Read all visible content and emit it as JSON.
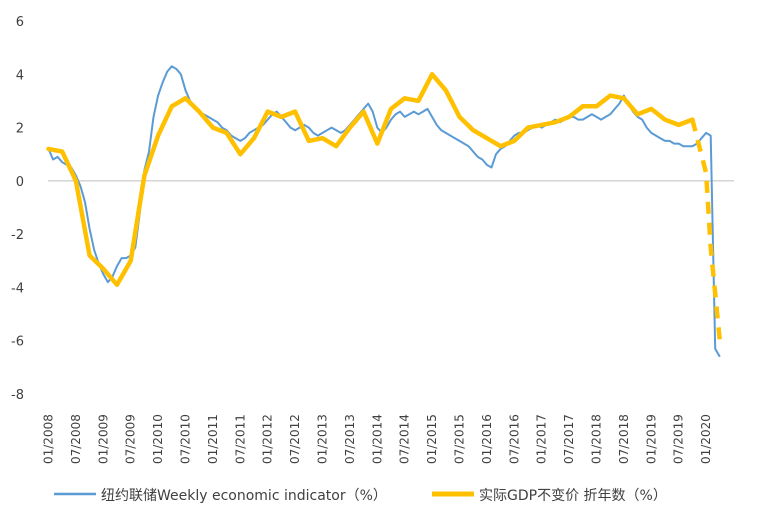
{
  "chart_data": {
    "type": "line",
    "x_ticks": [
      "01/2008",
      "07/2008",
      "01/2009",
      "07/2009",
      "01/2010",
      "07/2010",
      "01/2011",
      "07/2011",
      "01/2012",
      "07/2012",
      "01/2013",
      "07/2013",
      "01/2014",
      "07/2014",
      "01/2015",
      "07/2015",
      "01/2016",
      "07/2016",
      "01/2017",
      "07/2017",
      "01/2018",
      "07/2018",
      "01/2019",
      "07/2019",
      "01/2020"
    ],
    "y_ticks": [
      "6",
      "4",
      "2",
      "0",
      "-2",
      "-4",
      "-6",
      "-8"
    ],
    "ylim": [
      -8,
      6
    ],
    "grid": false,
    "legend_position": "bottom",
    "series": [
      {
        "name": "纽约联储Weekly economic indicator（%）",
        "color": "#5B9BD5",
        "style": "solid-thin",
        "points": [
          [
            "2008-01",
            1.2
          ],
          [
            "2008-02",
            0.8
          ],
          [
            "2008-03",
            0.9
          ],
          [
            "2008-04",
            0.7
          ],
          [
            "2008-05",
            0.6
          ],
          [
            "2008-06",
            0.5
          ],
          [
            "2008-07",
            0.2
          ],
          [
            "2008-08",
            -0.2
          ],
          [
            "2008-09",
            -0.8
          ],
          [
            "2008-10",
            -1.8
          ],
          [
            "2008-11",
            -2.6
          ],
          [
            "2008-12",
            -3.1
          ],
          [
            "2009-01",
            -3.5
          ],
          [
            "2009-02",
            -3.8
          ],
          [
            "2009-03",
            -3.6
          ],
          [
            "2009-04",
            -3.2
          ],
          [
            "2009-05",
            -2.9
          ],
          [
            "2009-06",
            -2.9
          ],
          [
            "2009-07",
            -2.8
          ],
          [
            "2009-08",
            -2.5
          ],
          [
            "2009-09",
            -1.2
          ],
          [
            "2009-10",
            0.4
          ],
          [
            "2009-11",
            1.1
          ],
          [
            "2009-12",
            2.4
          ],
          [
            "2010-01",
            3.2
          ],
          [
            "2010-02",
            3.7
          ],
          [
            "2010-03",
            4.1
          ],
          [
            "2010-04",
            4.3
          ],
          [
            "2010-05",
            4.2
          ],
          [
            "2010-06",
            4.0
          ],
          [
            "2010-07",
            3.4
          ],
          [
            "2010-08",
            3.0
          ],
          [
            "2010-09",
            2.8
          ],
          [
            "2010-10",
            2.6
          ],
          [
            "2010-11",
            2.5
          ],
          [
            "2010-12",
            2.4
          ],
          [
            "2011-01",
            2.3
          ],
          [
            "2011-02",
            2.2
          ],
          [
            "2011-03",
            2.0
          ],
          [
            "2011-04",
            1.9
          ],
          [
            "2011-05",
            1.7
          ],
          [
            "2011-06",
            1.6
          ],
          [
            "2011-07",
            1.5
          ],
          [
            "2011-08",
            1.6
          ],
          [
            "2011-09",
            1.8
          ],
          [
            "2011-10",
            1.9
          ],
          [
            "2011-11",
            2.0
          ],
          [
            "2011-12",
            2.1
          ],
          [
            "2012-01",
            2.3
          ],
          [
            "2012-02",
            2.5
          ],
          [
            "2012-03",
            2.6
          ],
          [
            "2012-04",
            2.4
          ],
          [
            "2012-05",
            2.2
          ],
          [
            "2012-06",
            2.0
          ],
          [
            "2012-07",
            1.9
          ],
          [
            "2012-08",
            2.0
          ],
          [
            "2012-09",
            2.1
          ],
          [
            "2012-10",
            2.0
          ],
          [
            "2012-11",
            1.8
          ],
          [
            "2012-12",
            1.7
          ],
          [
            "2013-01",
            1.8
          ],
          [
            "2013-02",
            1.9
          ],
          [
            "2013-03",
            2.0
          ],
          [
            "2013-04",
            1.9
          ],
          [
            "2013-05",
            1.8
          ],
          [
            "2013-06",
            1.9
          ],
          [
            "2013-07",
            2.1
          ],
          [
            "2013-08",
            2.3
          ],
          [
            "2013-09",
            2.5
          ],
          [
            "2013-10",
            2.7
          ],
          [
            "2013-11",
            2.9
          ],
          [
            "2013-12",
            2.6
          ],
          [
            "2014-01",
            2.0
          ],
          [
            "2014-02",
            1.8
          ],
          [
            "2014-03",
            2.0
          ],
          [
            "2014-04",
            2.3
          ],
          [
            "2014-05",
            2.5
          ],
          [
            "2014-06",
            2.6
          ],
          [
            "2014-07",
            2.4
          ],
          [
            "2014-08",
            2.5
          ],
          [
            "2014-09",
            2.6
          ],
          [
            "2014-10",
            2.5
          ],
          [
            "2014-11",
            2.6
          ],
          [
            "2014-12",
            2.7
          ],
          [
            "2015-01",
            2.4
          ],
          [
            "2015-02",
            2.1
          ],
          [
            "2015-03",
            1.9
          ],
          [
            "2015-04",
            1.8
          ],
          [
            "2015-05",
            1.7
          ],
          [
            "2015-06",
            1.6
          ],
          [
            "2015-07",
            1.5
          ],
          [
            "2015-08",
            1.4
          ],
          [
            "2015-09",
            1.3
          ],
          [
            "2015-10",
            1.1
          ],
          [
            "2015-11",
            0.9
          ],
          [
            "2015-12",
            0.8
          ],
          [
            "2016-01",
            0.6
          ],
          [
            "2016-02",
            0.5
          ],
          [
            "2016-03",
            1.0
          ],
          [
            "2016-04",
            1.2
          ],
          [
            "2016-05",
            1.3
          ],
          [
            "2016-06",
            1.5
          ],
          [
            "2016-07",
            1.7
          ],
          [
            "2016-08",
            1.8
          ],
          [
            "2016-09",
            1.8
          ],
          [
            "2016-10",
            1.9
          ],
          [
            "2016-11",
            2.0
          ],
          [
            "2016-12",
            2.1
          ],
          [
            "2017-01",
            2.0
          ],
          [
            "2017-02",
            2.1
          ],
          [
            "2017-03",
            2.2
          ],
          [
            "2017-04",
            2.3
          ],
          [
            "2017-05",
            2.2
          ],
          [
            "2017-06",
            2.3
          ],
          [
            "2017-07",
            2.4
          ],
          [
            "2017-08",
            2.4
          ],
          [
            "2017-09",
            2.3
          ],
          [
            "2017-10",
            2.3
          ],
          [
            "2017-11",
            2.4
          ],
          [
            "2017-12",
            2.5
          ],
          [
            "2018-01",
            2.4
          ],
          [
            "2018-02",
            2.3
          ],
          [
            "2018-03",
            2.4
          ],
          [
            "2018-04",
            2.5
          ],
          [
            "2018-05",
            2.7
          ],
          [
            "2018-06",
            2.9
          ],
          [
            "2018-07",
            3.2
          ],
          [
            "2018-08",
            2.9
          ],
          [
            "2018-09",
            2.6
          ],
          [
            "2018-10",
            2.4
          ],
          [
            "2018-11",
            2.3
          ],
          [
            "2018-12",
            2.0
          ],
          [
            "2019-01",
            1.8
          ],
          [
            "2019-02",
            1.7
          ],
          [
            "2019-03",
            1.6
          ],
          [
            "2019-04",
            1.5
          ],
          [
            "2019-05",
            1.5
          ],
          [
            "2019-06",
            1.4
          ],
          [
            "2019-07",
            1.4
          ],
          [
            "2019-08",
            1.3
          ],
          [
            "2019-09",
            1.3
          ],
          [
            "2019-10",
            1.3
          ],
          [
            "2019-11",
            1.4
          ],
          [
            "2019-12",
            1.6
          ],
          [
            "2020-01",
            1.8
          ],
          [
            "2020-02",
            1.7
          ],
          [
            "2020-03",
            -6.3
          ],
          [
            "2020-04",
            -6.6
          ]
        ]
      },
      {
        "name": "实际GDP不变价 折年数（%）",
        "color": "#FFC000",
        "style": "solid-thick; dashed for 2020",
        "points": [
          [
            "2008-01",
            1.2
          ],
          [
            "2008-04",
            1.1
          ],
          [
            "2008-07",
            0.0
          ],
          [
            "2008-10",
            -2.8
          ],
          [
            "2009-01",
            -3.3
          ],
          [
            "2009-04",
            -3.9
          ],
          [
            "2009-07",
            -3.0
          ],
          [
            "2009-10",
            0.2
          ],
          [
            "2010-01",
            1.7
          ],
          [
            "2010-04",
            2.8
          ],
          [
            "2010-07",
            3.1
          ],
          [
            "2010-10",
            2.6
          ],
          [
            "2011-01",
            2.0
          ],
          [
            "2011-04",
            1.8
          ],
          [
            "2011-07",
            1.0
          ],
          [
            "2011-10",
            1.6
          ],
          [
            "2012-01",
            2.6
          ],
          [
            "2012-04",
            2.4
          ],
          [
            "2012-07",
            2.6
          ],
          [
            "2012-10",
            1.5
          ],
          [
            "2013-01",
            1.6
          ],
          [
            "2013-04",
            1.3
          ],
          [
            "2013-07",
            2.0
          ],
          [
            "2013-10",
            2.6
          ],
          [
            "2014-01",
            1.4
          ],
          [
            "2014-04",
            2.7
          ],
          [
            "2014-07",
            3.1
          ],
          [
            "2014-10",
            3.0
          ],
          [
            "2015-01",
            4.0
          ],
          [
            "2015-04",
            3.4
          ],
          [
            "2015-07",
            2.4
          ],
          [
            "2015-10",
            1.9
          ],
          [
            "2016-01",
            1.6
          ],
          [
            "2016-04",
            1.3
          ],
          [
            "2016-07",
            1.5
          ],
          [
            "2016-10",
            2.0
          ],
          [
            "2017-01",
            2.1
          ],
          [
            "2017-04",
            2.2
          ],
          [
            "2017-07",
            2.4
          ],
          [
            "2017-10",
            2.8
          ],
          [
            "2018-01",
            2.8
          ],
          [
            "2018-04",
            3.2
          ],
          [
            "2018-07",
            3.1
          ],
          [
            "2018-10",
            2.5
          ],
          [
            "2019-01",
            2.7
          ],
          [
            "2019-04",
            2.3
          ],
          [
            "2019-07",
            2.1
          ],
          [
            "2019-10",
            2.3
          ],
          [
            "2020-01",
            0.3
          ],
          [
            "2020-02",
            -2.5
          ],
          [
            "2020-04",
            -6.0
          ]
        ]
      }
    ]
  }
}
